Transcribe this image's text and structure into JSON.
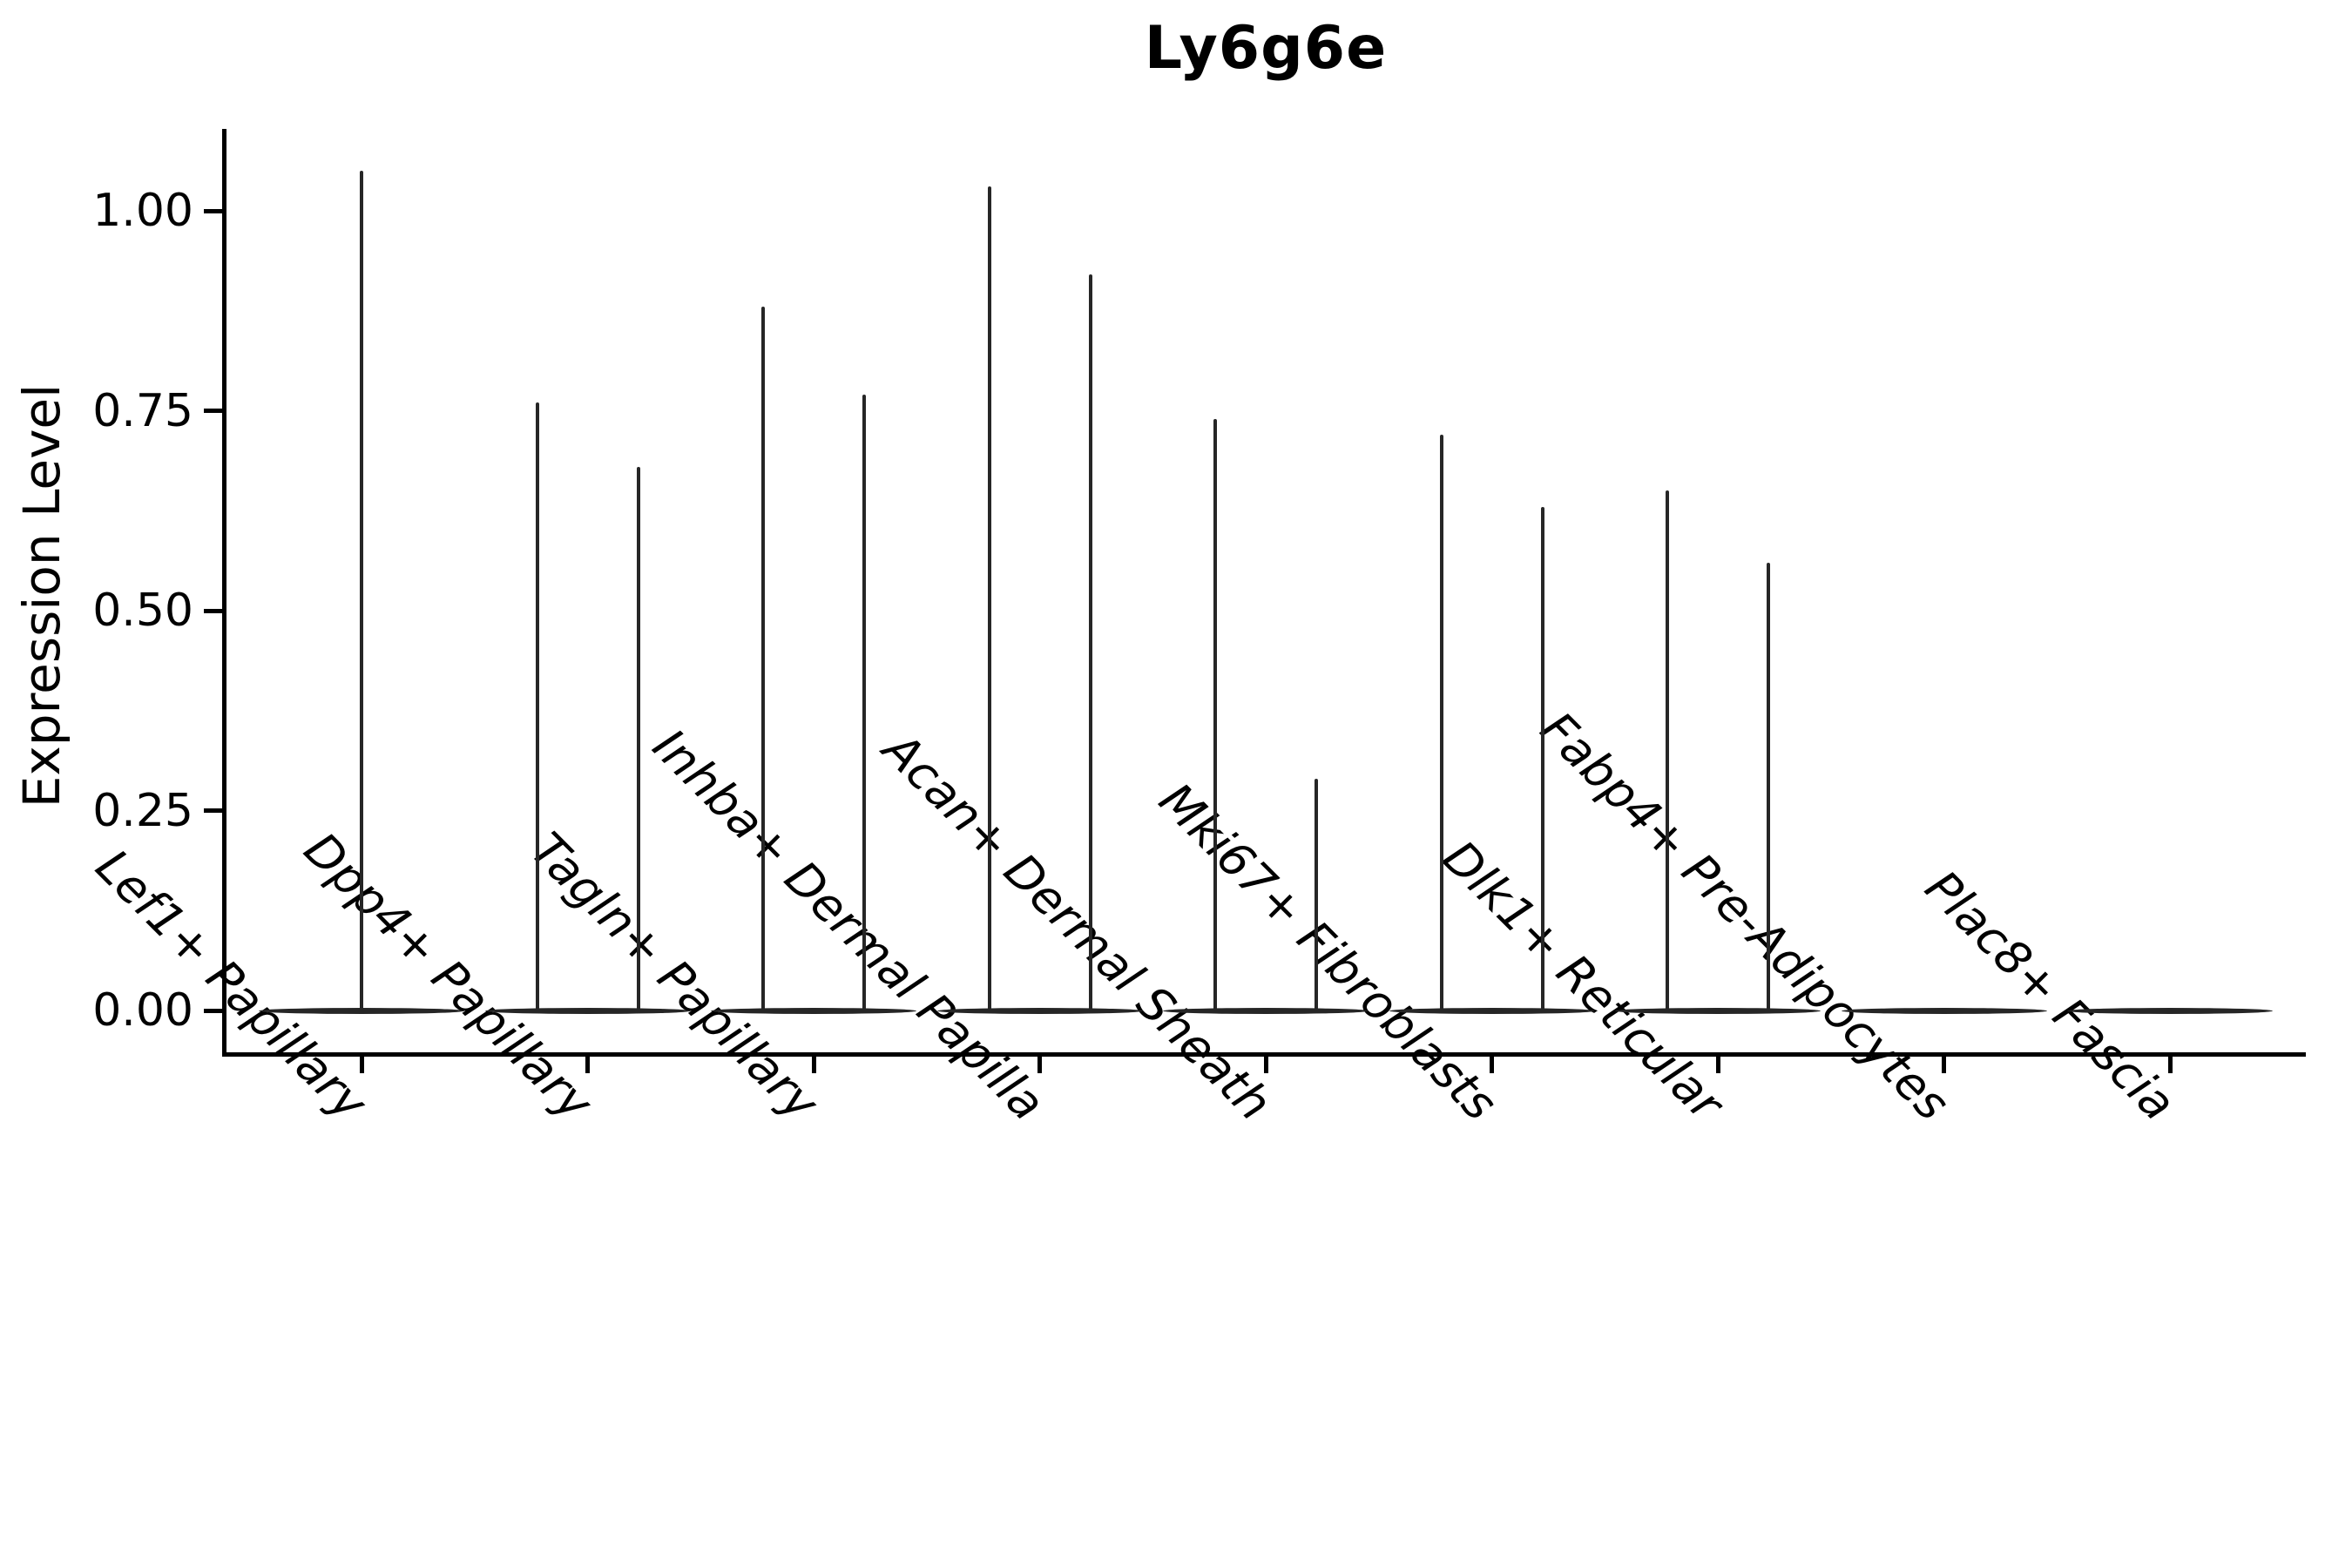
{
  "title": "Ly6g6e",
  "chart_data": {
    "type": "violin",
    "title": "Ly6g6e",
    "xlabel": "",
    "ylabel": "Expression Level",
    "ylim": [
      -0.05,
      1.11
    ],
    "ytick_values": [
      0.0,
      0.25,
      0.5,
      0.75,
      1.0
    ],
    "ytick_labels": [
      "0.00",
      "0.25",
      "0.50",
      "0.75",
      "1.00"
    ],
    "grid": false,
    "legend": null,
    "background": "#ffffff",
    "colors": {
      "violin_stroke": "#262626",
      "axis": "#000000",
      "text": "#000000"
    },
    "categories": [
      "Lef1+ Papillary",
      "Dpp4+ Papillary",
      "Tagln+ Papillary",
      "Inhba+ Dermal Papilla",
      "Acan+ Dermal Sheath",
      "Mki67+ Fibroblasts",
      "Dlk1+ Reticular",
      "Fabp4+ Pre-Adipocytes",
      "Plac8+ Fascia"
    ],
    "violins": [
      {
        "category": "Lef1+ Papillary",
        "zero_mass_base": 0.0,
        "spikes": [
          {
            "side": "center",
            "peak": 1.05
          }
        ]
      },
      {
        "category": "Dpp4+ Papillary",
        "zero_mass_base": 0.0,
        "spikes": [
          {
            "side": "left",
            "peak": 0.76
          },
          {
            "side": "right",
            "peak": 0.68
          }
        ]
      },
      {
        "category": "Tagln+ Papillary",
        "zero_mass_base": 0.0,
        "spikes": [
          {
            "side": "left",
            "peak": 0.88
          },
          {
            "side": "right",
            "peak": 0.77
          }
        ]
      },
      {
        "category": "Inhba+ Dermal Papilla",
        "zero_mass_base": 0.0,
        "spikes": [
          {
            "side": "left",
            "peak": 1.03
          },
          {
            "side": "right",
            "peak": 0.92
          }
        ]
      },
      {
        "category": "Acan+ Dermal Sheath",
        "zero_mass_base": 0.0,
        "spikes": [
          {
            "side": "left",
            "peak": 0.74
          },
          {
            "side": "right",
            "peak": 0.29
          }
        ]
      },
      {
        "category": "Mki67+ Fibroblasts",
        "zero_mass_base": 0.0,
        "spikes": [
          {
            "side": "left",
            "peak": 0.72
          },
          {
            "side": "right",
            "peak": 0.63
          }
        ]
      },
      {
        "category": "Dlk1+ Reticular",
        "zero_mass_base": 0.0,
        "spikes": [
          {
            "side": "left",
            "peak": 0.65
          },
          {
            "side": "right",
            "peak": 0.56
          }
        ]
      },
      {
        "category": "Fabp4+ Pre-Adipocytes",
        "zero_mass_base": 0.0,
        "spikes": []
      },
      {
        "category": "Plac8+ Fascia",
        "zero_mass_base": 0.0,
        "spikes": []
      }
    ]
  }
}
